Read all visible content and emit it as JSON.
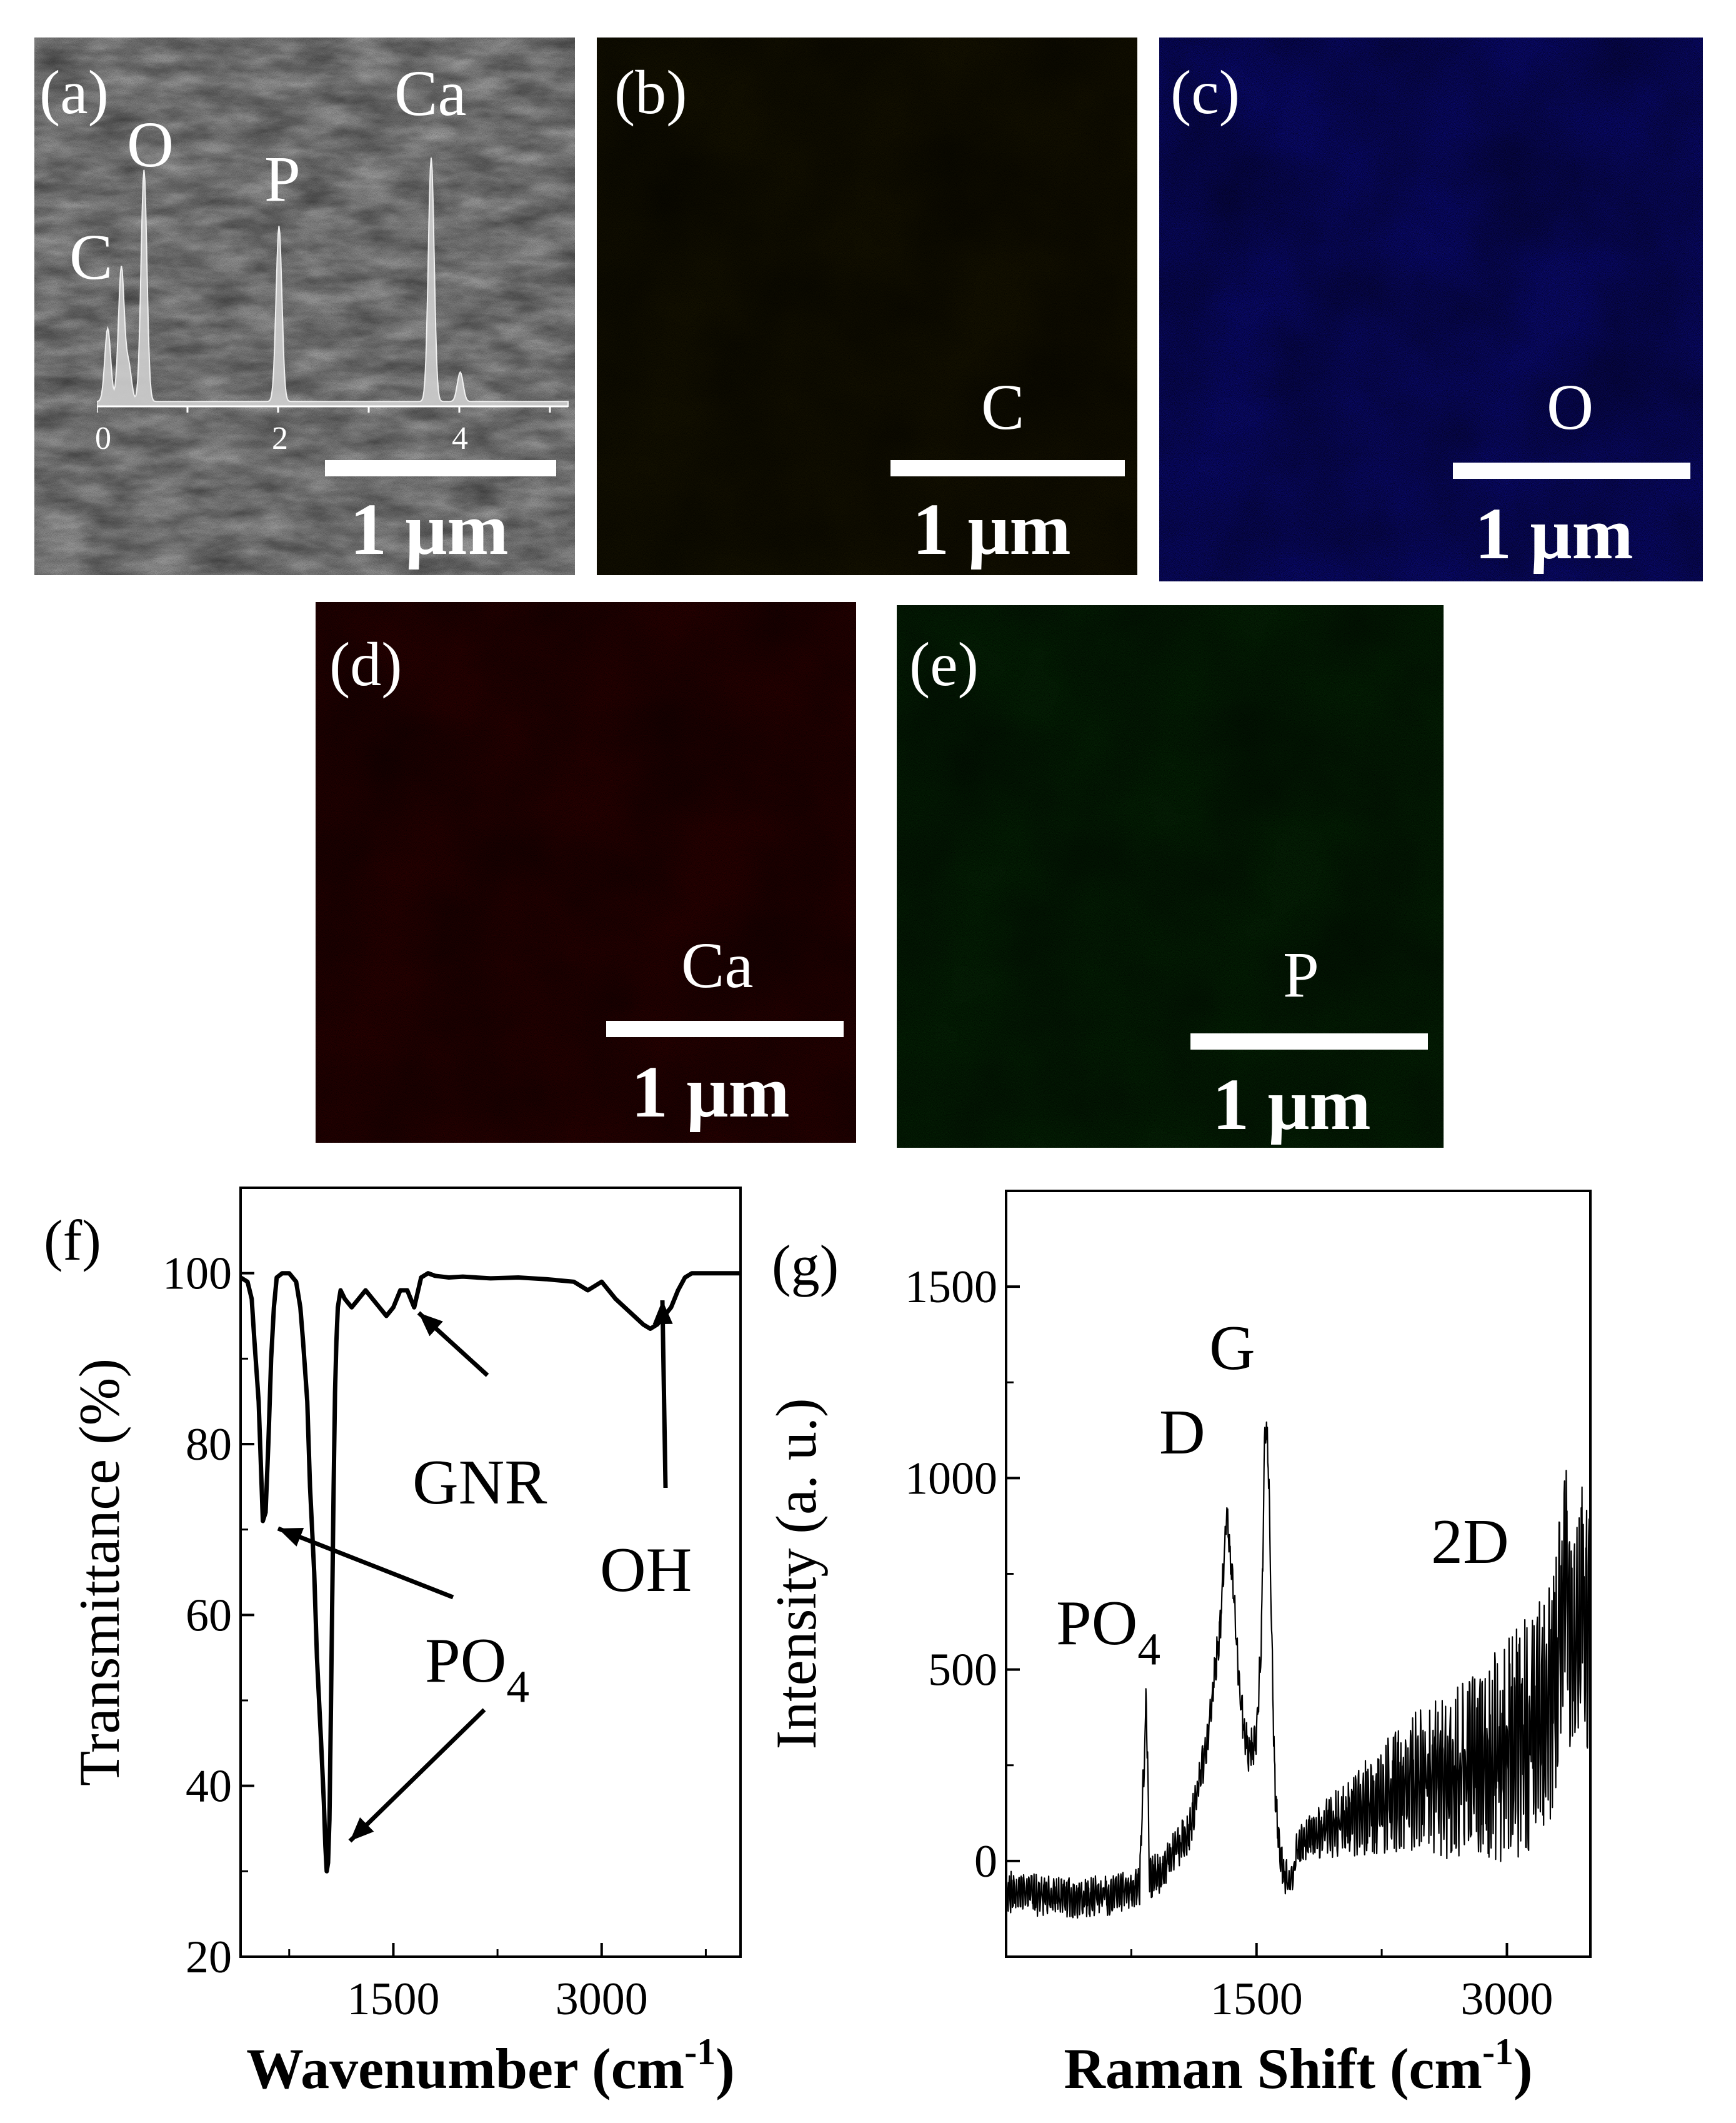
{
  "panels": {
    "a": {
      "label": "(a)",
      "scale": "1 μm",
      "eds": {
        "peaks": [
          "C",
          "O",
          "P",
          "Ca"
        ],
        "ticks": [
          "0",
          "2",
          "4"
        ]
      }
    },
    "b": {
      "label": "(b)",
      "element": "C",
      "scale": "1 μm",
      "color": "#bdb434"
    },
    "c": {
      "label": "(c)",
      "element": "O",
      "scale": "1 μm",
      "color": "#1c20dc"
    },
    "d": {
      "label": "(d)",
      "element": "Ca",
      "scale": "1 μm",
      "color": "#e21818"
    },
    "e": {
      "label": "(e)",
      "element": "P",
      "scale": "1 μm",
      "color": "#25a82c"
    }
  },
  "chart_data": [
    {
      "type": "line",
      "panel": "(f)",
      "xlabel": "Wavenumber (cm⁻¹)",
      "ylabel": "Transmittance (%)",
      "xlim": [
        400,
        4000
      ],
      "ylim": [
        20,
        110
      ],
      "xticks": [
        "1500",
        "3000"
      ],
      "yticks": [
        "20",
        "40",
        "60",
        "80",
        "100"
      ],
      "series": [
        {
          "x": [
            400,
            450,
            480,
            500,
            530,
            560,
            580,
            600,
            620,
            640,
            660,
            700,
            750,
            800,
            830,
            850,
            880,
            900,
            930,
            950,
            980,
            1000,
            1010,
            1020,
            1030,
            1040,
            1050,
            1060,
            1070,
            1080,
            1090,
            1100,
            1120,
            1150,
            1200,
            1250,
            1300,
            1350,
            1400,
            1450,
            1500,
            1550,
            1600,
            1650,
            1700,
            1750,
            1800,
            1900,
            2000,
            2200,
            2400,
            2600,
            2800,
            2900,
            2950,
            3000,
            3100,
            3200,
            3300,
            3350,
            3400,
            3450,
            3500,
            3550,
            3600,
            3650,
            3700,
            3800,
            3900,
            4000
          ],
          "y": [
            99.5,
            99,
            97,
            92,
            85,
            71,
            72,
            80,
            90,
            96,
            99.5,
            100,
            100,
            99,
            96,
            92,
            85,
            75,
            65,
            55,
            45,
            38,
            33,
            30,
            31,
            36,
            48,
            62,
            75,
            86,
            92,
            96,
            98,
            97,
            96,
            97,
            98,
            97,
            96,
            95,
            96,
            98,
            98,
            96,
            99.5,
            100,
            99.7,
            99.5,
            99.6,
            99.4,
            99.5,
            99.3,
            99,
            98,
            98.5,
            99,
            97,
            95.5,
            94,
            93.5,
            94,
            95,
            96,
            98,
            99.5,
            100,
            100,
            100,
            100,
            100
          ]
        }
      ],
      "annotations": [
        {
          "text": "GNR",
          "x": 1600,
          "y": 96
        },
        {
          "text": "OH",
          "x": 3450,
          "y": 94
        },
        {
          "text": "PO",
          "sub": "4",
          "x": 570,
          "y": 71
        },
        {
          "text": "PO",
          "sub": "4",
          "x": 1030,
          "y": 30
        }
      ]
    },
    {
      "type": "line",
      "panel": "(g)",
      "xlabel": "Raman Shift (cm⁻¹)",
      "ylabel": "Intensity (a. u.)",
      "xlim": [
        0,
        3500
      ],
      "ylim": [
        -250,
        1750
      ],
      "xticks": [
        "1500",
        "3000"
      ],
      "yticks": [
        "0",
        "500",
        "1000",
        "1500"
      ],
      "series": [
        {
          "x": [
            0,
            200,
            400,
            600,
            700,
            800,
            840,
            860,
            880,
            920,
            960,
            1000,
            1100,
            1200,
            1280,
            1320,
            1360,
            1400,
            1450,
            1500,
            1530,
            1550,
            1570,
            1590,
            1610,
            1630,
            1660,
            1700,
            1750,
            1800,
            2000,
            2200,
            2400,
            2600,
            2800,
            3000,
            3200,
            3300,
            3350,
            3400,
            3450,
            3500
          ],
          "y": [
            -80,
            -90,
            -100,
            -90,
            -80,
            -60,
            430,
            -50,
            -40,
            -30,
            -10,
            20,
            80,
            300,
            600,
            900,
            720,
            420,
            280,
            320,
            600,
            1130,
            1080,
            600,
            200,
            80,
            -40,
            -60,
            40,
            60,
            100,
            150,
            200,
            220,
            240,
            290,
            360,
            500,
            780,
            540,
            700,
            520
          ]
        }
      ],
      "annotations": [
        {
          "text": "PO",
          "sub": "4",
          "x": 850,
          "y": 430
        },
        {
          "text": "D",
          "x": 1340,
          "y": 900
        },
        {
          "text": "G",
          "x": 1560,
          "y": 1130
        },
        {
          "text": "2D",
          "x": 3120,
          "y": 720
        }
      ]
    }
  ],
  "chart_labels": {
    "f": {
      "panel": "(f)",
      "xlabel": "Wavenumber (cm",
      "xsup": "-1",
      "xclose": ")",
      "ylabel": "Transmittance (%)"
    },
    "g": {
      "panel": "(g)",
      "xlabel": "Raman Shift (cm",
      "xsup": "-1",
      "xclose": ")",
      "ylabel": "Intensity (a. u.)"
    }
  }
}
